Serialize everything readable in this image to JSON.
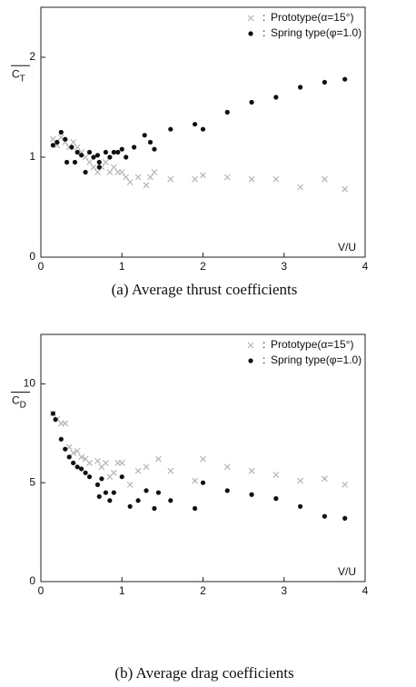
{
  "chart_data": [
    {
      "type": "scatter",
      "caption": "(a) Average thrust coefficients",
      "ylabel": "C",
      "ylabel_sub": "T",
      "xlabel": "V/U",
      "xlim": [
        0,
        4
      ],
      "xticks": [
        0,
        1,
        2,
        3,
        4
      ],
      "ylim": [
        0,
        2.5
      ],
      "yticks": [
        0,
        1,
        2
      ],
      "legend_separator": ":",
      "series": [
        {
          "name": "Prototype(α=15°)",
          "color": "#b4b4b4",
          "marker": "x",
          "x": [
            0.15,
            0.2,
            0.25,
            0.3,
            0.35,
            0.4,
            0.45,
            0.5,
            0.55,
            0.6,
            0.65,
            0.7,
            0.75,
            0.8,
            0.85,
            0.9,
            0.95,
            1.0,
            1.05,
            1.1,
            1.2,
            1.3,
            1.35,
            1.4,
            1.6,
            1.9,
            2.0,
            2.3,
            2.6,
            2.9,
            3.2,
            3.5,
            3.75
          ],
          "values": [
            1.18,
            1.12,
            1.2,
            1.15,
            1.1,
            1.15,
            1.1,
            1.05,
            1.0,
            0.95,
            0.9,
            0.85,
            0.9,
            0.95,
            0.85,
            0.9,
            0.85,
            0.85,
            0.8,
            0.75,
            0.8,
            0.72,
            0.8,
            0.85,
            0.78,
            0.78,
            0.82,
            0.8,
            0.78,
            0.78,
            0.7,
            0.78,
            0.68
          ]
        },
        {
          "name": "Spring type(φ=1.0)",
          "color": "#111111",
          "marker": "o",
          "x": [
            0.15,
            0.2,
            0.25,
            0.3,
            0.32,
            0.38,
            0.42,
            0.45,
            0.5,
            0.55,
            0.6,
            0.65,
            0.7,
            0.72,
            0.72,
            0.8,
            0.85,
            0.9,
            0.95,
            1.0,
            1.05,
            1.15,
            1.28,
            1.35,
            1.4,
            1.6,
            1.9,
            2.0,
            2.3,
            2.6,
            2.9,
            3.2,
            3.5,
            3.75
          ],
          "values": [
            1.12,
            1.15,
            1.25,
            1.18,
            0.95,
            1.1,
            0.95,
            1.05,
            1.02,
            0.85,
            1.05,
            1.0,
            1.02,
            0.9,
            0.95,
            1.05,
            1.0,
            1.05,
            1.05,
            1.08,
            1.0,
            1.1,
            1.22,
            1.15,
            1.08,
            1.28,
            1.33,
            1.28,
            1.45,
            1.55,
            1.6,
            1.7,
            1.75,
            1.78
          ]
        }
      ]
    },
    {
      "type": "scatter",
      "caption": "(b) Average drag coefficients",
      "ylabel": "C",
      "ylabel_sub": "D",
      "xlabel": "V/U",
      "xlim": [
        0,
        4
      ],
      "xticks": [
        0,
        1,
        2,
        3,
        4
      ],
      "ylim": [
        0,
        12.5
      ],
      "yticks": [
        0,
        5,
        10
      ],
      "legend_separator": ":",
      "series": [
        {
          "name": "Prototype(α=15°)",
          "color": "#b4b4b4",
          "marker": "x",
          "x": [
            0.15,
            0.2,
            0.25,
            0.3,
            0.35,
            0.4,
            0.45,
            0.5,
            0.55,
            0.6,
            0.7,
            0.75,
            0.8,
            0.85,
            0.9,
            0.95,
            1.0,
            1.1,
            1.2,
            1.3,
            1.45,
            1.6,
            1.9,
            2.0,
            2.3,
            2.6,
            2.9,
            3.2,
            3.5,
            3.75
          ],
          "values": [
            8.5,
            8.2,
            8.0,
            8.0,
            6.8,
            6.5,
            6.6,
            6.3,
            6.2,
            6.0,
            6.1,
            5.8,
            6.0,
            5.3,
            5.5,
            6.0,
            6.0,
            4.9,
            5.6,
            5.8,
            6.2,
            5.6,
            5.1,
            6.2,
            5.8,
            5.6,
            5.4,
            5.1,
            5.2,
            4.9
          ]
        },
        {
          "name": "Spring type(φ=1.0)",
          "color": "#111111",
          "marker": "o",
          "x": [
            0.15,
            0.18,
            0.25,
            0.3,
            0.35,
            0.4,
            0.45,
            0.5,
            0.55,
            0.6,
            0.7,
            0.72,
            0.75,
            0.8,
            0.85,
            0.9,
            1.0,
            1.1,
            1.2,
            1.3,
            1.4,
            1.45,
            1.6,
            1.9,
            2.0,
            2.3,
            2.6,
            2.9,
            3.2,
            3.5,
            3.75
          ],
          "values": [
            8.5,
            8.2,
            7.2,
            6.7,
            6.3,
            6.0,
            5.8,
            5.7,
            5.5,
            5.3,
            4.9,
            4.3,
            5.2,
            4.5,
            4.1,
            4.5,
            5.3,
            3.8,
            4.1,
            4.6,
            3.7,
            4.5,
            4.1,
            3.7,
            5.0,
            4.6,
            4.4,
            4.2,
            3.8,
            3.3,
            3.2
          ]
        }
      ]
    }
  ]
}
